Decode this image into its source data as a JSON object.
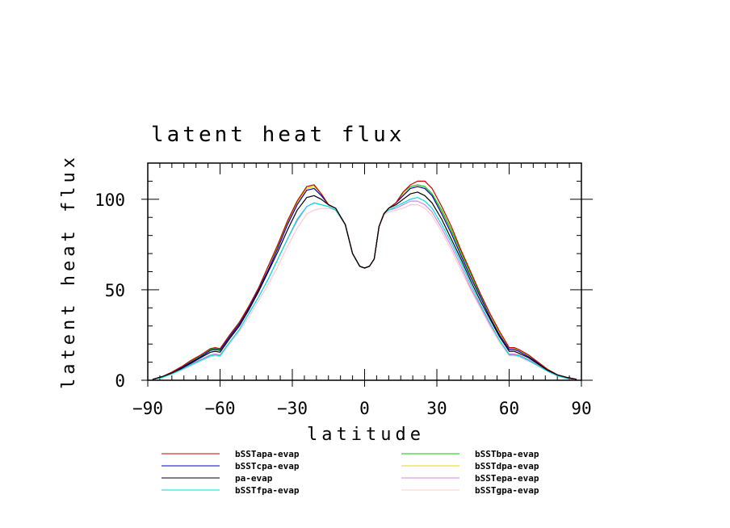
{
  "chart_data": {
    "type": "line",
    "title": "latent heat flux",
    "xlabel": "latitude",
    "ylabel": "latent heat flux",
    "xlim": [
      -90,
      90
    ],
    "ylim": [
      0,
      120
    ],
    "xticks": [
      -90,
      -60,
      -30,
      0,
      30,
      60,
      90
    ],
    "xtick_labels": [
      "−90",
      "−60",
      "−30",
      "0",
      "30",
      "60",
      "90"
    ],
    "yticks": [
      0,
      50,
      100
    ],
    "yticks_labels": [
      "0",
      "50",
      "100"
    ],
    "grid": false,
    "legend_position": "bottom",
    "x": [
      -88,
      -84,
      -80,
      -76,
      -72,
      -68,
      -64,
      -62,
      -60,
      -56,
      -52,
      -48,
      -44,
      -40,
      -36,
      -32,
      -28,
      -24,
      -21,
      -18,
      -15,
      -12,
      -8,
      -5,
      -2,
      0,
      2,
      4,
      6,
      8,
      10,
      13,
      16,
      19,
      22,
      25,
      28,
      32,
      36,
      40,
      44,
      48,
      52,
      56,
      60,
      62,
      64,
      68,
      72,
      76,
      80,
      84,
      88
    ],
    "series": [
      {
        "name": "bSSTapa-evap",
        "color": "#cc0000",
        "values": [
          0.5,
          2,
          4.5,
          7.5,
          11,
          14,
          17.5,
          18,
          17.5,
          25,
          32,
          41,
          51,
          63,
          75,
          88,
          99,
          107,
          108,
          103,
          97,
          95,
          86,
          70,
          63,
          62,
          63,
          67,
          85,
          92,
          95,
          98,
          104,
          108,
          110,
          110,
          106,
          96,
          85,
          72,
          60,
          48,
          37,
          27,
          18,
          18,
          17,
          14,
          10,
          6,
          3,
          1.5,
          0.5
        ]
      },
      {
        "name": "bSSTbpa-evap",
        "color": "#00cc00",
        "values": [
          0.5,
          2,
          4,
          7,
          10.5,
          13.5,
          17,
          17.5,
          17,
          25,
          32,
          41,
          51,
          63,
          75,
          88,
          99,
          107,
          108,
          103,
          97,
          95,
          86,
          70,
          63,
          62,
          63,
          67,
          85,
          92,
          95,
          98,
          104,
          107,
          108,
          107,
          103,
          94,
          83,
          71,
          59,
          47,
          37,
          27,
          18,
          18,
          17,
          14,
          10,
          6,
          3,
          1.5,
          0.5
        ]
      },
      {
        "name": "bSSTcpa-evap",
        "color": "#0000cc",
        "values": [
          0.5,
          2,
          4,
          7,
          10,
          13,
          16.5,
          17,
          16.5,
          24,
          31,
          40,
          50,
          61,
          73,
          86,
          97,
          105,
          106,
          102,
          97,
          95,
          86,
          70,
          63,
          62,
          63,
          67,
          85,
          92,
          95,
          98,
          102,
          106,
          107,
          106,
          102,
          92,
          81,
          69,
          57,
          46,
          35,
          25,
          17,
          17,
          16,
          13,
          9.5,
          6,
          3,
          1.5,
          0.5
        ]
      },
      {
        "name": "bSSTdpa-evap",
        "color": "#dddd00",
        "values": [
          0.5,
          2,
          4,
          7,
          10.5,
          13.5,
          17,
          17.5,
          17,
          25,
          32,
          41,
          51,
          63,
          74,
          87,
          98,
          106,
          107,
          103,
          97,
          95,
          86,
          70,
          63,
          62,
          63,
          67,
          85,
          92,
          95,
          98,
          103,
          106,
          107,
          106,
          102,
          93,
          82,
          70,
          58,
          47,
          36,
          26,
          17.5,
          17.5,
          16.5,
          13.5,
          10,
          6,
          3,
          1.5,
          0.5
        ]
      },
      {
        "name": "pa-evap",
        "color": "#000000",
        "values": [
          0.5,
          2,
          4,
          6.5,
          9.5,
          12.5,
          15.5,
          16,
          15.5,
          23,
          30,
          39,
          49,
          60,
          71,
          83,
          94,
          101,
          102,
          100,
          97,
          95,
          86,
          70,
          63,
          62,
          63,
          67,
          85,
          92,
          95,
          97,
          100,
          103,
          104,
          102,
          98,
          89,
          78,
          67,
          55,
          44,
          34,
          24,
          16,
          16,
          15,
          12.5,
          9,
          5.5,
          3,
          1.5,
          0.5
        ]
      },
      {
        "name": "bSSTepa-evap",
        "color": "#cc88dd",
        "values": [
          0.5,
          2,
          3.5,
          6,
          9,
          11.5,
          14,
          14.5,
          14,
          21,
          28,
          37,
          46,
          56,
          67,
          78,
          88,
          96,
          98,
          97,
          96,
          94,
          86,
          70,
          63,
          62,
          63,
          67,
          85,
          92,
          94,
          95,
          97,
          99,
          99,
          97,
          93,
          84,
          74,
          63,
          51,
          41,
          31,
          22,
          14.5,
          14.5,
          14,
          11.5,
          8.5,
          5,
          2.5,
          1.5,
          0.5
        ]
      },
      {
        "name": "bSSTfpa-evap",
        "color": "#00dddd",
        "values": [
          0.5,
          1.5,
          3.5,
          6,
          8.5,
          11,
          13.5,
          14,
          13.5,
          21,
          28,
          37,
          46,
          56,
          67,
          78,
          89,
          96,
          98,
          97,
          96,
          94,
          86,
          70,
          63,
          62,
          63,
          67,
          85,
          92,
          94,
          96,
          98,
          100,
          101,
          99,
          95,
          86,
          76,
          65,
          53,
          42,
          32,
          22,
          14,
          14,
          13.5,
          11,
          8,
          5,
          2.5,
          1,
          0.5
        ]
      },
      {
        "name": "bSSTgpa-evap",
        "color": "#ffc8d0",
        "values": [
          0.5,
          1.5,
          3.5,
          5.5,
          8,
          10.5,
          13,
          13.5,
          13,
          20,
          27,
          35,
          44,
          53,
          63,
          74,
          84,
          92,
          94,
          95,
          95,
          94,
          86,
          70,
          63,
          62,
          63,
          67,
          85,
          91,
          93,
          94,
          95,
          97,
          97,
          95,
          91,
          82,
          72,
          61,
          50,
          40,
          30,
          21,
          13.5,
          13.5,
          13,
          10.5,
          8,
          5,
          2.5,
          1,
          0.5
        ]
      }
    ],
    "legend_order": [
      "bSSTapa-evap",
      "bSSTbpa-evap",
      "bSSTcpa-evap",
      "bSSTdpa-evap",
      "pa-evap",
      "bSSTepa-evap",
      "bSSTfpa-evap",
      "bSSTgpa-evap"
    ]
  }
}
